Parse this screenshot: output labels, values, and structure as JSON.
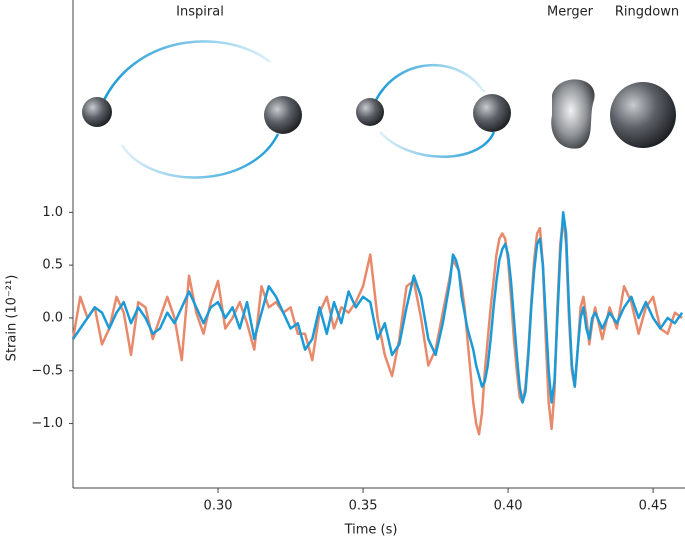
{
  "chart_data": {
    "type": "line",
    "annotations": [
      "Inspiral",
      "Merger",
      "Ringdown"
    ],
    "xlabel": "Time (s)",
    "ylabel": "Strain (10⁻²¹)",
    "xlim": [
      0.25,
      0.461
    ],
    "ylim": [
      -1.61,
      3.01
    ],
    "xticks": [
      {
        "value": 0.3,
        "label": "0.30"
      },
      {
        "value": 0.35,
        "label": "0.35"
      },
      {
        "value": 0.4,
        "label": "0.40"
      },
      {
        "value": 0.45,
        "label": "0.45"
      }
    ],
    "yticks": [
      {
        "value": 1,
        "label": "1.0"
      },
      {
        "value": 0.5,
        "label": "0.5"
      },
      {
        "value": 0,
        "label": "0.0"
      },
      {
        "value": -0.5,
        "label": "−0.5"
      },
      {
        "value": -1,
        "label": "−1.0"
      }
    ],
    "grid": false,
    "x": [
      0.25,
      0.2525,
      0.255,
      0.2575,
      0.26,
      0.2625,
      0.265,
      0.2675,
      0.27,
      0.2725,
      0.275,
      0.2775,
      0.28,
      0.2825,
      0.285,
      0.2875,
      0.29,
      0.2925,
      0.295,
      0.2975,
      0.3,
      0.3025,
      0.305,
      0.3075,
      0.31,
      0.3125,
      0.315,
      0.3175,
      0.32,
      0.3225,
      0.325,
      0.3275,
      0.33,
      0.3325,
      0.335,
      0.3375,
      0.34,
      0.3425,
      0.345,
      0.3475,
      0.35,
      0.3525,
      0.355,
      0.3575,
      0.36,
      0.3625,
      0.365,
      0.3675,
      0.37,
      0.3725,
      0.375,
      0.3775,
      0.38,
      0.381,
      0.382,
      0.383,
      0.384,
      0.385,
      0.386,
      0.387,
      0.388,
      0.389,
      0.39,
      0.391,
      0.392,
      0.393,
      0.394,
      0.395,
      0.396,
      0.397,
      0.398,
      0.399,
      0.4,
      0.401,
      0.402,
      0.403,
      0.404,
      0.405,
      0.406,
      0.407,
      0.408,
      0.409,
      0.41,
      0.411,
      0.412,
      0.413,
      0.414,
      0.415,
      0.416,
      0.417,
      0.418,
      0.419,
      0.42,
      0.421,
      0.422,
      0.423,
      0.424,
      0.425,
      0.426,
      0.427,
      0.428,
      0.429,
      0.43,
      0.4325,
      0.435,
      0.4375,
      0.44,
      0.4425,
      0.445,
      0.4475,
      0.45,
      0.4525,
      0.455,
      0.4575,
      0.46
    ],
    "series": [
      {
        "color": "#e8896b",
        "values": [
          -0.2,
          0.2,
          0.0,
          0.1,
          -0.25,
          -0.1,
          0.2,
          0.05,
          -0.35,
          0.15,
          0.1,
          -0.2,
          0.0,
          0.2,
          0.0,
          -0.4,
          0.4,
          0.05,
          -0.15,
          0.15,
          0.35,
          -0.1,
          0.0,
          0.15,
          -0.05,
          -0.3,
          0.3,
          0.1,
          0.15,
          0.05,
          0.1,
          -0.15,
          -0.15,
          -0.4,
          0.05,
          0.2,
          -0.1,
          0.1,
          0.05,
          0.15,
          0.3,
          0.6,
          0.0,
          -0.35,
          -0.55,
          -0.2,
          0.3,
          0.35,
          0.0,
          -0.45,
          -0.3,
          0.05,
          0.4,
          0.55,
          0.5,
          0.45,
          0.3,
          0.1,
          -0.2,
          -0.5,
          -0.8,
          -1.0,
          -1.1,
          -0.9,
          -0.5,
          -0.2,
          0.1,
          0.35,
          0.6,
          0.75,
          0.8,
          0.75,
          0.55,
          0.2,
          -0.2,
          -0.5,
          -0.75,
          -0.8,
          -0.65,
          -0.3,
          0.15,
          0.55,
          0.8,
          0.85,
          0.5,
          -0.2,
          -0.8,
          -1.05,
          -0.7,
          0.1,
          0.7,
          0.95,
          0.7,
          0.0,
          -0.5,
          -0.65,
          -0.3,
          0.1,
          0.2,
          0.0,
          -0.25,
          -0.05,
          0.1,
          -0.2,
          0.1,
          -0.1,
          0.3,
          0.15,
          -0.15,
          0.1,
          0.2,
          -0.1,
          -0.15,
          0.05,
          0.0
        ]
      },
      {
        "color": "#1a9ad6",
        "values": [
          -0.2,
          -0.1,
          0.0,
          0.1,
          0.05,
          -0.1,
          0.05,
          0.15,
          -0.05,
          0.1,
          0.0,
          -0.15,
          -0.1,
          0.05,
          -0.05,
          0.1,
          0.25,
          0.1,
          -0.05,
          0.1,
          0.15,
          0.0,
          0.1,
          -0.1,
          0.15,
          -0.2,
          0.05,
          0.3,
          0.2,
          0.05,
          -0.1,
          -0.05,
          -0.3,
          -0.2,
          0.1,
          -0.15,
          0.15,
          -0.05,
          0.25,
          0.1,
          0.2,
          0.15,
          -0.2,
          -0.05,
          -0.35,
          -0.25,
          0.1,
          0.4,
          0.2,
          -0.2,
          -0.35,
          -0.05,
          0.35,
          0.6,
          0.55,
          0.45,
          0.2,
          0.05,
          -0.1,
          -0.2,
          -0.3,
          -0.45,
          -0.55,
          -0.65,
          -0.6,
          -0.45,
          -0.2,
          0.1,
          0.35,
          0.55,
          0.65,
          0.7,
          0.6,
          0.35,
          0.0,
          -0.35,
          -0.65,
          -0.8,
          -0.7,
          -0.35,
          0.1,
          0.45,
          0.7,
          0.75,
          0.5,
          0.0,
          -0.5,
          -0.8,
          -0.6,
          0.0,
          0.6,
          1.0,
          0.8,
          0.1,
          -0.45,
          -0.65,
          -0.3,
          0.0,
          0.1,
          -0.1,
          -0.2,
          0.0,
          0.05,
          -0.1,
          0.05,
          -0.05,
          0.1,
          0.2,
          0.0,
          0.15,
          0.0,
          -0.1,
          0.0,
          -0.05,
          0.05
        ]
      }
    ]
  }
}
